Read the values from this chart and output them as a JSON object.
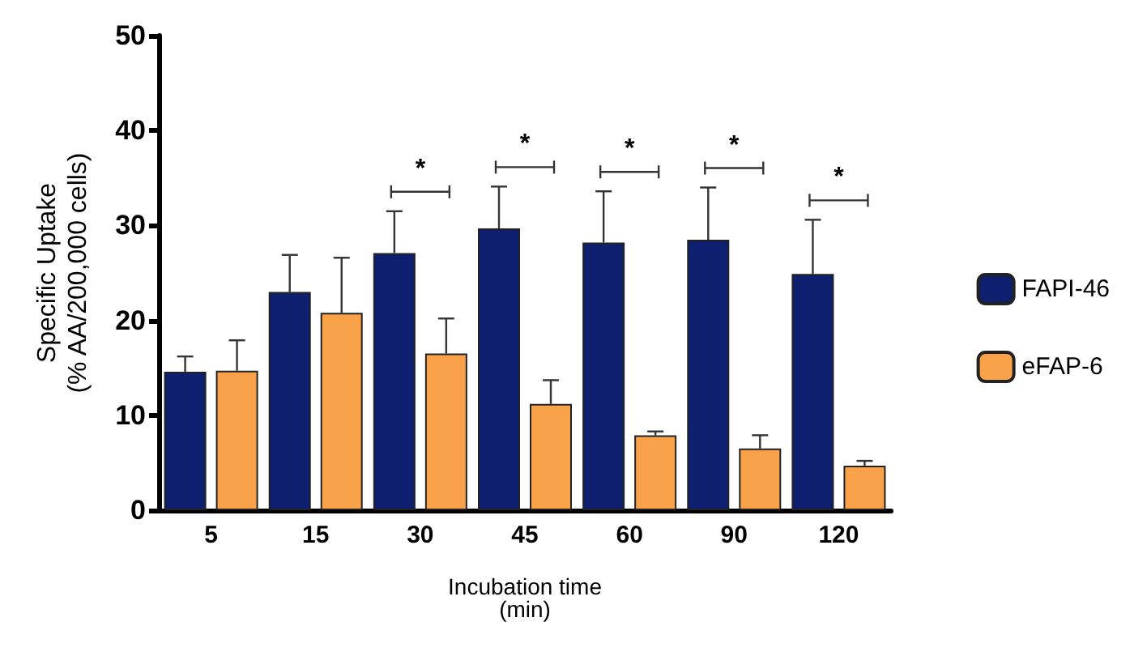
{
  "chart_data": {
    "type": "bar",
    "xlabel": "Incubation time\n(min)",
    "ylabel": "Specific Uptake\n(% AA/200,000 cells)",
    "categories": [
      "5",
      "15",
      "30",
      "45",
      "60",
      "90",
      "120"
    ],
    "series": [
      {
        "name": "FAPI-46",
        "color": "#0d1f6e",
        "values": [
          14.6,
          23.0,
          27.1,
          29.7,
          28.2,
          28.5,
          24.9
        ],
        "errors": [
          [
            14.6,
            16.2
          ],
          [
            23.0,
            26.9
          ],
          [
            27.1,
            31.5
          ],
          [
            29.7,
            34.1
          ],
          [
            28.2,
            33.6
          ],
          [
            28.5,
            34.0
          ],
          [
            24.9,
            30.6
          ]
        ]
      },
      {
        "name": "eFAP-6",
        "color": "#f9a24a",
        "values": [
          14.7,
          20.8,
          16.5,
          11.2,
          7.9,
          6.5,
          4.7
        ],
        "errors": [
          [
            14.7,
            17.9
          ],
          [
            20.8,
            26.6
          ],
          [
            16.5,
            20.2
          ],
          [
            11.2,
            13.7
          ],
          [
            7.9,
            8.3
          ],
          [
            6.5,
            7.9
          ],
          [
            4.7,
            5.2
          ]
        ]
      }
    ],
    "ylim": [
      0,
      50
    ],
    "yticks": [
      0,
      10,
      20,
      30,
      40,
      50
    ],
    "grid": false,
    "legend": "right",
    "annotations": [
      "*",
      "*",
      "*",
      "*",
      "*"
    ]
  }
}
